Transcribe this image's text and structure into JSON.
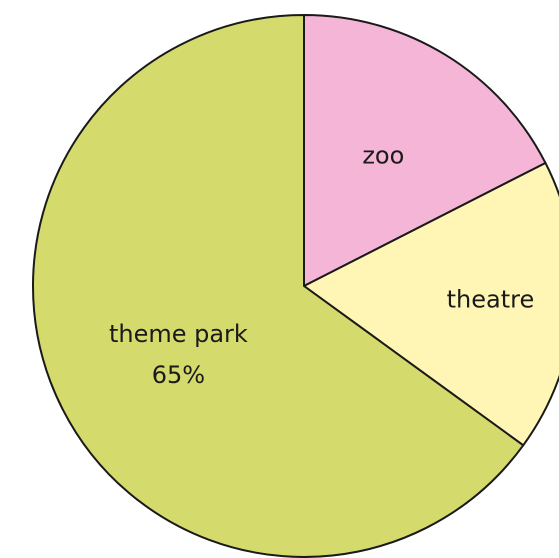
{
  "chart_data": {
    "type": "pie",
    "title": "",
    "start": "top",
    "direction": "clockwise",
    "slices": [
      {
        "label": "zoo",
        "value_label": "",
        "value": 17.5,
        "color": "#f5b5d6"
      },
      {
        "label": "theatre",
        "value_label": "",
        "value": 17.5,
        "color": "#fff5b5"
      },
      {
        "label": "theme park",
        "value_label": "65%",
        "value": 65,
        "color": "#d4da6c"
      }
    ]
  }
}
